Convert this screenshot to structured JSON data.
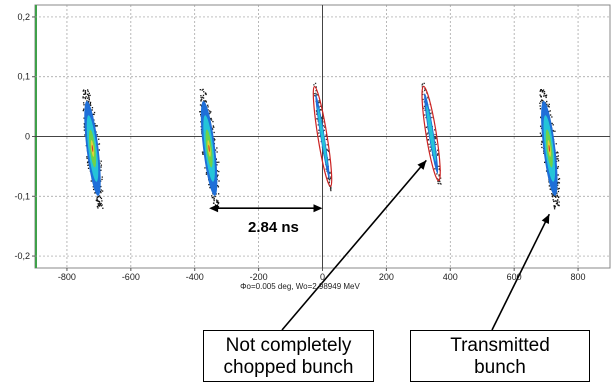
{
  "chart_data": {
    "type": "scatter",
    "title": "",
    "xlabel": "Φo=0.005 deg, Wo=2.98949 MeV",
    "ylabel": "",
    "xlim": [
      -900,
      900
    ],
    "ylim": [
      -0.22,
      0.22
    ],
    "x_ticks": [
      -800,
      -600,
      -400,
      -200,
      0,
      200,
      400,
      600,
      800
    ],
    "y_ticks": [
      -0.2,
      -0.1,
      0,
      0.1,
      0.2
    ],
    "x_tick_labels": [
      "-800",
      "-600",
      "-400",
      "-200",
      "0",
      "200",
      "400",
      "600",
      "800"
    ],
    "y_tick_labels": [
      "-0,2",
      "-0,1",
      "0",
      "0,1",
      "0,2"
    ],
    "grid": true,
    "bunches": [
      {
        "center_x": -720,
        "x_half_width": 25,
        "y_min": -0.12,
        "y_max": 0.08,
        "status": "transmitted"
      },
      {
        "center_x": -355,
        "x_half_width": 25,
        "y_min": -0.12,
        "y_max": 0.08,
        "status": "transmitted"
      },
      {
        "center_x": 0,
        "x_half_width": 12,
        "y_min": -0.09,
        "y_max": 0.09,
        "status": "partially chopped"
      },
      {
        "center_x": 340,
        "x_half_width": 15,
        "y_min": -0.08,
        "y_max": 0.09,
        "status": "partially chopped"
      },
      {
        "center_x": 710,
        "x_half_width": 25,
        "y_min": -0.12,
        "y_max": 0.08,
        "status": "transmitted"
      }
    ],
    "interval_arrow": {
      "x_from": -355,
      "x_to": 0,
      "y": -0.12
    },
    "annotations": {
      "interval_label": "2.84 ns",
      "callout_left": [
        "Not completely",
        "chopped bunch"
      ],
      "callout_right": [
        "Transmitted",
        "bunch"
      ]
    }
  }
}
